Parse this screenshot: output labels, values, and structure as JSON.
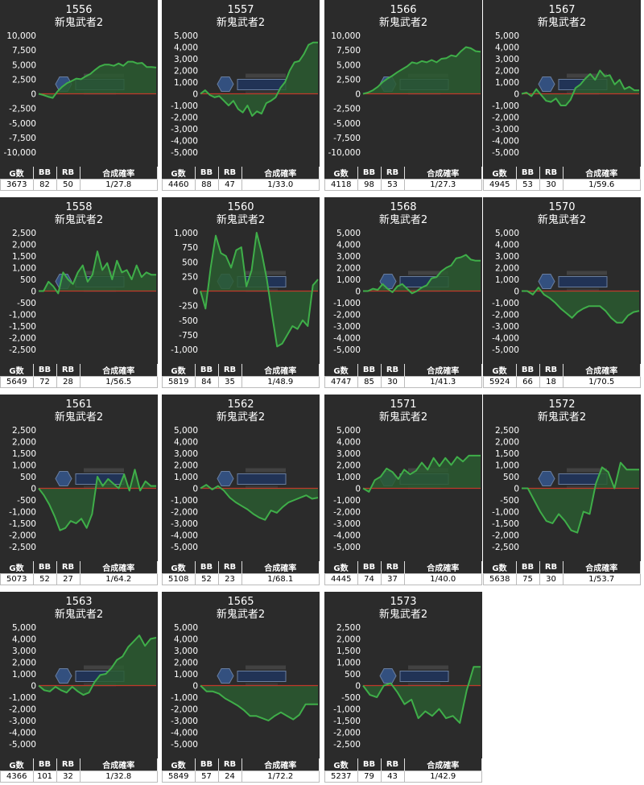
{
  "chart_data": [
    {
      "type": "area",
      "machine": "1556",
      "model": "新鬼武者2",
      "yticks": [
        "10,000",
        "7,500",
        "5,000",
        "2,500",
        "0",
        "-2,500",
        "-5,000",
        "-7,500",
        "-10,000"
      ],
      "ylim": [
        -10000,
        10000
      ],
      "values": [
        0,
        -200,
        -500,
        -700,
        400,
        1200,
        1800,
        2200,
        2600,
        2500,
        3000,
        3400,
        4100,
        4700,
        5000,
        5000,
        4800,
        5200,
        4800,
        5500,
        5500,
        5200,
        5300,
        4600,
        4600,
        4500
      ],
      "stats": {
        "headers": [
          "G数",
          "BB",
          "RB",
          "合成確率"
        ],
        "values": [
          "3673",
          "82",
          "50",
          "1/27.8"
        ]
      }
    },
    {
      "type": "area",
      "machine": "1557",
      "model": "新鬼武者2",
      "yticks": [
        "5,000",
        "4,000",
        "3,000",
        "2,000",
        "1,000",
        "0",
        "-1,000",
        "-2,000",
        "-3,000",
        "-4,000",
        "-5,000"
      ],
      "ylim": [
        -5000,
        5000
      ],
      "values": [
        0,
        300,
        -100,
        -300,
        -200,
        -600,
        -1000,
        -600,
        -1300,
        -1600,
        -1000,
        -1900,
        -1500,
        -1700,
        -800,
        -600,
        -300,
        500,
        1000,
        2000,
        2700,
        2800,
        3400,
        4200,
        4400,
        4400
      ],
      "stats": {
        "headers": [
          "G数",
          "BB",
          "RB",
          "合成確率"
        ],
        "values": [
          "4460",
          "88",
          "47",
          "1/33.0"
        ]
      }
    },
    {
      "type": "area",
      "machine": "1566",
      "model": "新鬼武者2",
      "yticks": [
        "10,000",
        "7,500",
        "5,000",
        "2,500",
        "0",
        "-2,500",
        "-5,000",
        "-7,500",
        "-10,000"
      ],
      "ylim": [
        -10000,
        10000
      ],
      "values": [
        0,
        200,
        600,
        1200,
        2000,
        2600,
        3100,
        3700,
        4200,
        4700,
        5400,
        5200,
        5600,
        5400,
        5800,
        5400,
        6000,
        6100,
        6600,
        6400,
        7300,
        8000,
        7800,
        7300,
        7200
      ],
      "stats": {
        "headers": [
          "G数",
          "BB",
          "RB",
          "合成確率"
        ],
        "values": [
          "4118",
          "98",
          "53",
          "1/27.3"
        ]
      }
    },
    {
      "type": "area",
      "machine": "1567",
      "model": "新鬼武者2",
      "yticks": [
        "5,000",
        "4,000",
        "3,000",
        "2,000",
        "1,000",
        "0",
        "-1,000",
        "-2,000",
        "-3,000",
        "-4,000",
        "-5,000"
      ],
      "ylim": [
        -5000,
        5000
      ],
      "values": [
        0,
        100,
        -200,
        400,
        -100,
        -600,
        -700,
        -400,
        -1000,
        -1000,
        -500,
        500,
        800,
        1300,
        1700,
        1200,
        2000,
        1500,
        1600,
        800,
        1200,
        400,
        600,
        300,
        300
      ],
      "stats": {
        "headers": [
          "G数",
          "BB",
          "RB",
          "合成確率"
        ],
        "values": [
          "4945",
          "53",
          "30",
          "1/59.6"
        ]
      }
    },
    {
      "type": "area",
      "machine": "1558",
      "model": "新鬼武者2",
      "yticks": [
        "2,500",
        "2,000",
        "1,500",
        "1,000",
        "500",
        "0",
        "-500",
        "-1,000",
        "-1,500",
        "-2,000",
        "-2,500"
      ],
      "ylim": [
        -2500,
        2500
      ],
      "values": [
        0,
        0,
        400,
        200,
        -100,
        800,
        500,
        300,
        800,
        1100,
        400,
        700,
        1700,
        900,
        1200,
        500,
        1300,
        800,
        900,
        500,
        1100,
        600,
        800,
        700,
        700
      ],
      "stats": {
        "headers": [
          "G数",
          "BB",
          "RB",
          "合成確率"
        ],
        "values": [
          "5649",
          "72",
          "28",
          "1/56.5"
        ]
      }
    },
    {
      "type": "area",
      "machine": "1560",
      "model": "新鬼武者2",
      "yticks": [
        "1,000",
        "750",
        "500",
        "250",
        "0",
        "-250",
        "-500",
        "-750",
        "-1,000"
      ],
      "ylim": [
        -1000,
        1000
      ],
      "values": [
        0,
        -300,
        400,
        950,
        650,
        600,
        400,
        700,
        750,
        80,
        350,
        1000,
        650,
        200,
        -400,
        -950,
        -900,
        -750,
        -600,
        -650,
        -500,
        -600,
        100,
        200
      ],
      "stats": {
        "headers": [
          "G数",
          "BB",
          "RB",
          "合成確率"
        ],
        "values": [
          "5819",
          "84",
          "35",
          "1/48.9"
        ]
      }
    },
    {
      "type": "area",
      "machine": "1568",
      "model": "新鬼武者2",
      "yticks": [
        "5,000",
        "4,000",
        "3,000",
        "2,000",
        "1,000",
        "0",
        "-1,000",
        "-2,000",
        "-3,000",
        "-4,000",
        "-5,000"
      ],
      "ylim": [
        -5000,
        5000
      ],
      "values": [
        0,
        0,
        200,
        100,
        600,
        200,
        -100,
        400,
        600,
        200,
        -200,
        0,
        300,
        500,
        1100,
        1200,
        1700,
        2000,
        2200,
        2800,
        2900,
        3100,
        2700,
        2600,
        2600
      ],
      "stats": {
        "headers": [
          "G数",
          "BB",
          "RB",
          "合成確率"
        ],
        "values": [
          "4747",
          "85",
          "30",
          "1/41.3"
        ]
      }
    },
    {
      "type": "area",
      "machine": "1570",
      "model": "新鬼武者2",
      "yticks": [
        "5,000",
        "4,000",
        "3,000",
        "2,000",
        "1,000",
        "0",
        "-1,000",
        "-2,000",
        "-3,000",
        "-4,000",
        "-5,000"
      ],
      "ylim": [
        -5000,
        5000
      ],
      "values": [
        0,
        0,
        -300,
        300,
        -300,
        -600,
        -1000,
        -1500,
        -1900,
        -2300,
        -1800,
        -1500,
        -1300,
        -1300,
        -1300,
        -1700,
        -2300,
        -2700,
        -2700,
        -2100,
        -1800,
        -1700
      ],
      "stats": {
        "headers": [
          "G数",
          "BB",
          "RB",
          "合成確率"
        ],
        "values": [
          "5924",
          "66",
          "18",
          "1/70.5"
        ]
      }
    },
    {
      "type": "area",
      "machine": "1561",
      "model": "新鬼武者2",
      "yticks": [
        "2,500",
        "2,000",
        "1,500",
        "1,000",
        "500",
        "0",
        "-500",
        "-1,000",
        "-1,500",
        "-2,000",
        "-2,500"
      ],
      "ylim": [
        -2500,
        2500
      ],
      "values": [
        0,
        -300,
        -700,
        -1200,
        -1800,
        -1700,
        -1400,
        -1500,
        -1300,
        -1700,
        -1100,
        500,
        100,
        400,
        200,
        0,
        600,
        -100,
        800,
        -100,
        300,
        100,
        100
      ],
      "stats": {
        "headers": [
          "G数",
          "BB",
          "RB",
          "合成確率"
        ],
        "values": [
          "5073",
          "52",
          "27",
          "1/64.2"
        ]
      }
    },
    {
      "type": "area",
      "machine": "1562",
      "model": "新鬼武者2",
      "yticks": [
        "5,000",
        "4,000",
        "3,000",
        "2,000",
        "1,000",
        "0",
        "-1,000",
        "-2,000",
        "-3,000",
        "-4,000",
        "-5,000"
      ],
      "ylim": [
        -5000,
        5000
      ],
      "values": [
        0,
        300,
        -100,
        200,
        -200,
        -800,
        -1200,
        -1500,
        -1800,
        -2200,
        -2500,
        -2700,
        -1900,
        -2100,
        -1600,
        -1200,
        -1000,
        -800,
        -600,
        -900,
        -800
      ],
      "stats": {
        "headers": [
          "G数",
          "BB",
          "RB",
          "合成確率"
        ],
        "values": [
          "5108",
          "52",
          "23",
          "1/68.1"
        ]
      }
    },
    {
      "type": "area",
      "machine": "1571",
      "model": "新鬼武者2",
      "yticks": [
        "5,000",
        "4,000",
        "3,000",
        "2,000",
        "1,000",
        "0",
        "-1,000",
        "-2,000",
        "-3,000",
        "-4,000",
        "-5,000"
      ],
      "ylim": [
        -5000,
        5000
      ],
      "values": [
        0,
        -300,
        700,
        1000,
        1700,
        1400,
        800,
        1600,
        1200,
        1500,
        2200,
        1600,
        2600,
        1900,
        2600,
        2000,
        2700,
        2300,
        2800,
        2800,
        2800
      ],
      "stats": {
        "headers": [
          "G数",
          "BB",
          "RB",
          "合成確率"
        ],
        "values": [
          "4445",
          "74",
          "37",
          "1/40.0"
        ]
      }
    },
    {
      "type": "area",
      "machine": "1572",
      "model": "新鬼武者2",
      "yticks": [
        "2,500",
        "2,000",
        "1,500",
        "1,000",
        "500",
        "0",
        "-500",
        "-1,000",
        "-1,500",
        "-2,000",
        "-2,500"
      ],
      "ylim": [
        -2500,
        2500
      ],
      "values": [
        0,
        0,
        -500,
        -1000,
        -1400,
        -1500,
        -1100,
        -1400,
        -1800,
        -1900,
        -1000,
        -1100,
        200,
        900,
        700,
        0,
        1100,
        800,
        800,
        800
      ],
      "stats": {
        "headers": [
          "G数",
          "BB",
          "RB",
          "合成確率"
        ],
        "values": [
          "5638",
          "75",
          "30",
          "1/53.7"
        ]
      }
    },
    {
      "type": "area",
      "machine": "1563",
      "model": "新鬼武者2",
      "yticks": [
        "5,000",
        "4,000",
        "3,000",
        "2,000",
        "1,000",
        "0",
        "-1,000",
        "-2,000",
        "-3,000",
        "-4,000",
        "-5,000"
      ],
      "ylim": [
        -5000,
        5000
      ],
      "values": [
        0,
        -400,
        -500,
        -100,
        -400,
        -600,
        -100,
        -500,
        -800,
        -600,
        300,
        900,
        1000,
        1500,
        2200,
        2500,
        3300,
        3800,
        4300,
        3400,
        4000,
        4100
      ],
      "stats": {
        "headers": [
          "G数",
          "BB",
          "RB",
          "合成確率"
        ],
        "values": [
          "4366",
          "101",
          "32",
          "1/32.8"
        ]
      }
    },
    {
      "type": "area",
      "machine": "1565",
      "model": "新鬼武者2",
      "yticks": [
        "5,000",
        "4,000",
        "3,000",
        "2,000",
        "1,000",
        "0",
        "-1,000",
        "-2,000",
        "-3,000",
        "-4,000",
        "-5,000"
      ],
      "ylim": [
        -5000,
        5000
      ],
      "values": [
        0,
        -500,
        -500,
        -700,
        -1100,
        -1400,
        -1700,
        -2100,
        -2600,
        -2600,
        -2800,
        -3000,
        -2600,
        -2300,
        -2600,
        -2900,
        -2500,
        -1600,
        -1600,
        -1600
      ],
      "stats": {
        "headers": [
          "G数",
          "BB",
          "RB",
          "合成確率"
        ],
        "values": [
          "5849",
          "57",
          "24",
          "1/72.2"
        ]
      }
    },
    {
      "type": "area",
      "machine": "1573",
      "model": "新鬼武者2",
      "yticks": [
        "2,500",
        "2,000",
        "1,500",
        "1,000",
        "500",
        "0",
        "-500",
        "-1,000",
        "-1,500",
        "-2,000",
        "-2,500"
      ],
      "ylim": [
        -2500,
        2500
      ],
      "values": [
        0,
        -400,
        -500,
        0,
        100,
        -300,
        -800,
        -600,
        -1400,
        -1100,
        -1300,
        -1000,
        -1400,
        -1300,
        -1600,
        -200,
        800,
        800
      ],
      "stats": {
        "headers": [
          "G数",
          "BB",
          "RB",
          "合成確率"
        ],
        "values": [
          "5237",
          "79",
          "43",
          "1/42.9"
        ]
      }
    }
  ],
  "colors": {
    "panel_bg": "#2b2b2b",
    "plot_bg": "#2b2b2b",
    "line": "#3fae49",
    "fill": "#2a5a30",
    "zero_line": "#c0392b",
    "text": "#ffffff",
    "stats_bg": "#ffffff"
  }
}
